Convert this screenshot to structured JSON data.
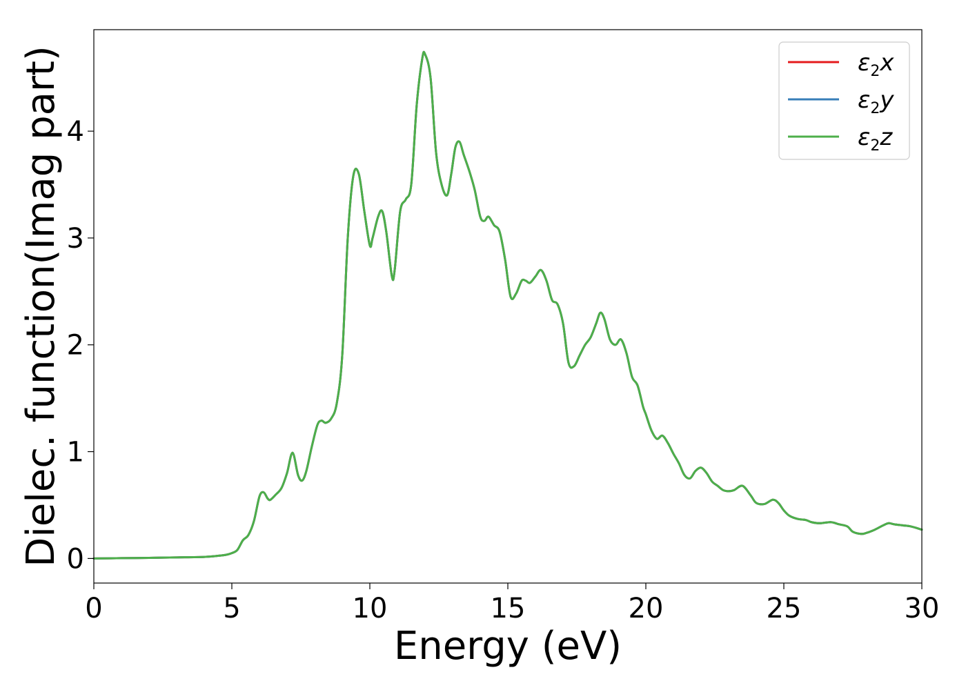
{
  "chart_data": {
    "type": "line",
    "title": "",
    "xlabel": "Energy (eV)",
    "ylabel": "Dielec. function(Imag part)",
    "xlim": [
      0,
      30
    ],
    "ylim": [
      -0.23,
      4.95
    ],
    "xticks": [
      0,
      5,
      10,
      15,
      20,
      25,
      30
    ],
    "xtick_labels": [
      "0",
      "5",
      "10",
      "15",
      "20",
      "25",
      "30"
    ],
    "yticks": [
      0,
      1,
      2,
      3,
      4
    ],
    "ytick_labels": [
      "0",
      "1",
      "2",
      "3",
      "4"
    ],
    "grid": false,
    "legend_position": "top-right",
    "legend": [
      {
        "base": "ε",
        "sub": "2",
        "axis": "x",
        "color": "#e41a1c"
      },
      {
        "base": "ε",
        "sub": "2",
        "axis": "y",
        "color": "#377eb8"
      },
      {
        "base": "ε",
        "sub": "2",
        "axis": "z",
        "color": "#4daf4a"
      }
    ],
    "x": [
      0,
      1,
      2,
      3,
      4,
      4.5,
      4.8,
      5.0,
      5.2,
      5.4,
      5.6,
      5.8,
      6.0,
      6.15,
      6.3,
      6.4,
      6.6,
      6.8,
      7.0,
      7.2,
      7.4,
      7.55,
      7.7,
      7.9,
      8.1,
      8.25,
      8.4,
      8.6,
      8.8,
      9.0,
      9.2,
      9.4,
      9.6,
      9.8,
      10.0,
      10.1,
      10.3,
      10.45,
      10.6,
      10.8,
      10.9,
      11.1,
      11.3,
      11.5,
      11.7,
      11.9,
      12.0,
      12.2,
      12.4,
      12.6,
      12.8,
      12.95,
      13.1,
      13.25,
      13.4,
      13.6,
      13.8,
      14.0,
      14.15,
      14.3,
      14.5,
      14.7,
      14.9,
      15.1,
      15.3,
      15.5,
      15.65,
      15.8,
      16.0,
      16.2,
      16.4,
      16.6,
      16.8,
      17.0,
      17.2,
      17.4,
      17.6,
      17.8,
      18.0,
      18.2,
      18.35,
      18.5,
      18.7,
      18.9,
      19.1,
      19.3,
      19.5,
      19.7,
      19.9,
      20.0,
      20.2,
      20.4,
      20.6,
      20.8,
      21.0,
      21.2,
      21.4,
      21.6,
      21.8,
      22.0,
      22.2,
      22.4,
      22.6,
      22.8,
      23.0,
      23.2,
      23.5,
      23.8,
      24.0,
      24.3,
      24.6,
      24.8,
      25.0,
      25.2,
      25.5,
      25.8,
      26.0,
      26.3,
      26.7,
      27.0,
      27.3,
      27.5,
      27.8,
      28.0,
      28.3,
      28.6,
      28.8,
      29.0,
      29.3,
      29.6,
      30.0
    ],
    "series": [
      {
        "name": "ε2x",
        "color": "#e41a1c",
        "y": [
          0,
          0.003,
          0.006,
          0.01,
          0.015,
          0.025,
          0.035,
          0.05,
          0.08,
          0.17,
          0.22,
          0.35,
          0.58,
          0.62,
          0.56,
          0.55,
          0.6,
          0.66,
          0.8,
          0.99,
          0.78,
          0.73,
          0.82,
          1.05,
          1.25,
          1.29,
          1.27,
          1.31,
          1.45,
          1.9,
          3.0,
          3.58,
          3.6,
          3.25,
          2.93,
          3.0,
          3.2,
          3.25,
          3.05,
          2.64,
          2.7,
          3.25,
          3.36,
          3.5,
          4.25,
          4.68,
          4.72,
          4.5,
          3.8,
          3.5,
          3.4,
          3.6,
          3.85,
          3.9,
          3.78,
          3.63,
          3.45,
          3.2,
          3.16,
          3.2,
          3.12,
          3.06,
          2.8,
          2.45,
          2.48,
          2.6,
          2.6,
          2.58,
          2.64,
          2.7,
          2.6,
          2.42,
          2.38,
          2.2,
          1.83,
          1.8,
          1.9,
          2.0,
          2.07,
          2.2,
          2.3,
          2.24,
          2.05,
          2.0,
          2.05,
          1.92,
          1.7,
          1.62,
          1.42,
          1.35,
          1.2,
          1.12,
          1.15,
          1.08,
          0.98,
          0.89,
          0.78,
          0.75,
          0.82,
          0.85,
          0.8,
          0.72,
          0.68,
          0.64,
          0.63,
          0.64,
          0.68,
          0.59,
          0.52,
          0.51,
          0.55,
          0.52,
          0.45,
          0.4,
          0.37,
          0.36,
          0.34,
          0.33,
          0.34,
          0.32,
          0.3,
          0.25,
          0.23,
          0.24,
          0.27,
          0.31,
          0.33,
          0.32,
          0.31,
          0.3,
          0.27
        ]
      },
      {
        "name": "ε2y",
        "color": "#377eb8",
        "y": [
          0,
          0.003,
          0.006,
          0.01,
          0.015,
          0.025,
          0.035,
          0.05,
          0.08,
          0.17,
          0.22,
          0.35,
          0.58,
          0.62,
          0.56,
          0.55,
          0.6,
          0.66,
          0.8,
          0.99,
          0.78,
          0.73,
          0.82,
          1.05,
          1.25,
          1.29,
          1.27,
          1.31,
          1.45,
          1.9,
          3.0,
          3.58,
          3.6,
          3.25,
          2.93,
          3.0,
          3.2,
          3.25,
          3.05,
          2.64,
          2.7,
          3.25,
          3.36,
          3.5,
          4.25,
          4.68,
          4.72,
          4.5,
          3.8,
          3.5,
          3.4,
          3.6,
          3.85,
          3.9,
          3.78,
          3.63,
          3.45,
          3.2,
          3.16,
          3.2,
          3.12,
          3.06,
          2.8,
          2.45,
          2.48,
          2.6,
          2.6,
          2.58,
          2.64,
          2.7,
          2.6,
          2.42,
          2.38,
          2.2,
          1.83,
          1.8,
          1.9,
          2.0,
          2.07,
          2.2,
          2.3,
          2.24,
          2.05,
          2.0,
          2.05,
          1.92,
          1.7,
          1.62,
          1.42,
          1.35,
          1.2,
          1.12,
          1.15,
          1.08,
          0.98,
          0.89,
          0.78,
          0.75,
          0.82,
          0.85,
          0.8,
          0.72,
          0.68,
          0.64,
          0.63,
          0.64,
          0.68,
          0.59,
          0.52,
          0.51,
          0.55,
          0.52,
          0.45,
          0.4,
          0.37,
          0.36,
          0.34,
          0.33,
          0.34,
          0.32,
          0.3,
          0.25,
          0.23,
          0.24,
          0.27,
          0.31,
          0.33,
          0.32,
          0.31,
          0.3,
          0.27
        ]
      },
      {
        "name": "ε2z",
        "color": "#4daf4a",
        "y": [
          0,
          0.003,
          0.006,
          0.01,
          0.015,
          0.025,
          0.035,
          0.05,
          0.08,
          0.17,
          0.22,
          0.35,
          0.58,
          0.62,
          0.56,
          0.55,
          0.6,
          0.66,
          0.8,
          0.99,
          0.78,
          0.73,
          0.82,
          1.05,
          1.25,
          1.29,
          1.27,
          1.31,
          1.45,
          1.9,
          3.0,
          3.58,
          3.6,
          3.25,
          2.93,
          3.0,
          3.2,
          3.25,
          3.05,
          2.64,
          2.7,
          3.25,
          3.36,
          3.5,
          4.25,
          4.68,
          4.72,
          4.5,
          3.8,
          3.5,
          3.4,
          3.6,
          3.85,
          3.9,
          3.78,
          3.63,
          3.45,
          3.2,
          3.16,
          3.2,
          3.12,
          3.06,
          2.8,
          2.45,
          2.48,
          2.6,
          2.6,
          2.58,
          2.64,
          2.7,
          2.6,
          2.42,
          2.38,
          2.2,
          1.83,
          1.8,
          1.9,
          2.0,
          2.07,
          2.2,
          2.3,
          2.24,
          2.05,
          2.0,
          2.05,
          1.92,
          1.7,
          1.62,
          1.42,
          1.35,
          1.2,
          1.12,
          1.15,
          1.08,
          0.98,
          0.89,
          0.78,
          0.75,
          0.82,
          0.85,
          0.8,
          0.72,
          0.68,
          0.64,
          0.63,
          0.64,
          0.68,
          0.59,
          0.52,
          0.51,
          0.55,
          0.52,
          0.45,
          0.4,
          0.37,
          0.36,
          0.34,
          0.33,
          0.34,
          0.32,
          0.3,
          0.25,
          0.23,
          0.24,
          0.27,
          0.31,
          0.33,
          0.32,
          0.31,
          0.3,
          0.27
        ]
      }
    ]
  }
}
